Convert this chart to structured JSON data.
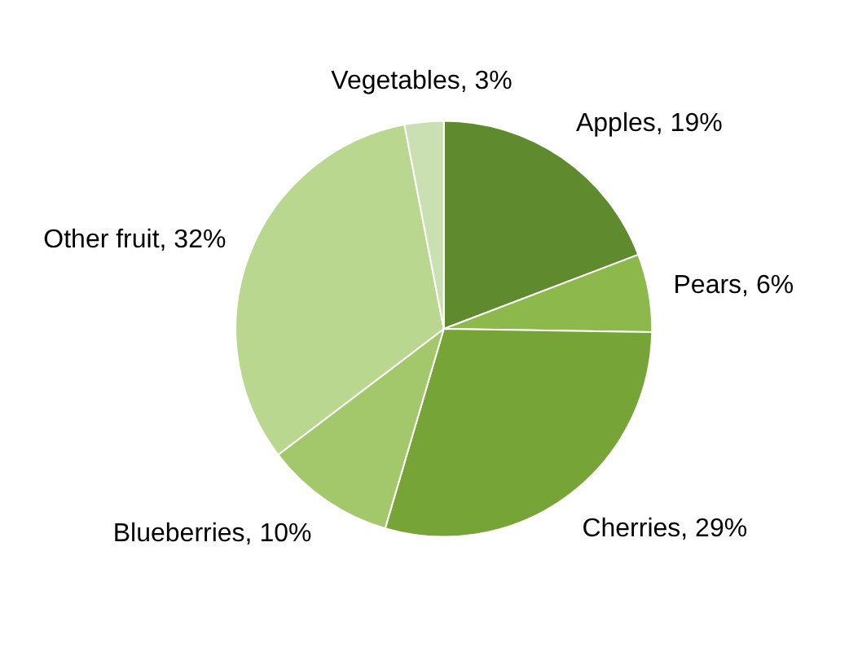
{
  "chart_data": {
    "type": "pie",
    "categories": [
      "Apples",
      "Pears",
      "Cherries",
      "Blueberries",
      "Other fruit",
      "Vegetables"
    ],
    "values": [
      19,
      6,
      29,
      10,
      32,
      3
    ],
    "value_labels": [
      "19%",
      "6%",
      "29%",
      "10%",
      "32%",
      "3%"
    ],
    "colors": [
      "#5f8a2e",
      "#8cb84c",
      "#76a436",
      "#a3c86c",
      "#b9d78f",
      "#cadfb2"
    ]
  }
}
